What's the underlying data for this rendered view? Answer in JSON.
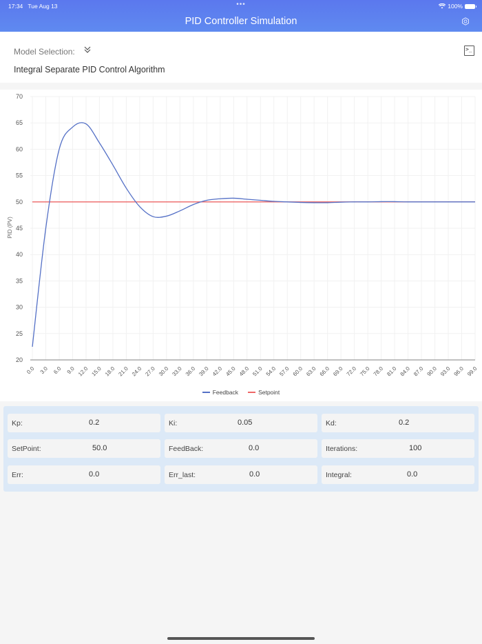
{
  "status_bar": {
    "time": "17:34",
    "date": "Tue Aug 13",
    "dots": "•••",
    "battery": "100%"
  },
  "header": {
    "title": "PID Controller Simulation",
    "settings_icon": "gear-icon"
  },
  "model": {
    "label": "Model Selection:",
    "chevron_icon": "double-chevron-down-icon",
    "selected": "Integral Separate PID Control Algorithm",
    "terminal_icon": "terminal-icon"
  },
  "colors": {
    "header": "#5b78ee",
    "feedback": "#5470c6",
    "setpoint": "#ee6666",
    "panel": "#dce9f7"
  },
  "chart_data": {
    "type": "line",
    "title": "",
    "xlabel": "",
    "ylabel": "PID (PV)",
    "ylim": [
      20,
      70
    ],
    "yticks": [
      20,
      25,
      30,
      35,
      40,
      45,
      50,
      55,
      60,
      65,
      70
    ],
    "x": [
      "0.0",
      "3.0",
      "6.0",
      "9.0",
      "12.0",
      "15.0",
      "18.0",
      "21.0",
      "24.0",
      "27.0",
      "30.0",
      "33.0",
      "36.0",
      "39.0",
      "42.0",
      "45.0",
      "48.0",
      "51.0",
      "54.0",
      "57.0",
      "60.0",
      "63.0",
      "66.0",
      "69.0",
      "72.0",
      "75.0",
      "78.0",
      "81.0",
      "84.0",
      "87.0",
      "90.0",
      "93.0",
      "96.0",
      "99.0"
    ],
    "grid": true,
    "legend_position": "bottom",
    "series": [
      {
        "name": "Feedback",
        "color": "#5470c6",
        "values": [
          22.5,
          45.0,
          60.0,
          64.2,
          64.8,
          61.2,
          57.0,
          52.6,
          49.1,
          47.2,
          47.3,
          48.3,
          49.5,
          50.3,
          50.6,
          50.7,
          50.5,
          50.3,
          50.1,
          50.0,
          49.9,
          49.85,
          49.85,
          49.95,
          50.0,
          50.0,
          50.05,
          50.05,
          50.0,
          50.0,
          50.0,
          50.0,
          50.0,
          50.0
        ]
      },
      {
        "name": "Setpoint",
        "color": "#ee6666",
        "values": [
          50,
          50,
          50,
          50,
          50,
          50,
          50,
          50,
          50,
          50,
          50,
          50,
          50,
          50,
          50,
          50,
          50,
          50,
          50,
          50,
          50,
          50,
          50,
          50,
          50,
          50,
          50,
          50,
          50,
          50,
          50,
          50,
          50,
          50
        ]
      }
    ]
  },
  "legend": {
    "feedback": "Feedback",
    "setpoint": "Setpoint"
  },
  "params": [
    {
      "key": "Kp:",
      "value": "0.2"
    },
    {
      "key": "Ki:",
      "value": "0.05"
    },
    {
      "key": "Kd:",
      "value": "0.2"
    },
    {
      "key": "SetPoint:",
      "value": "50.0"
    },
    {
      "key": "FeedBack:",
      "value": "0.0"
    },
    {
      "key": "Iterations:",
      "value": "100"
    },
    {
      "key": "Err:",
      "value": "0.0"
    },
    {
      "key": "Err_last:",
      "value": "0.0"
    },
    {
      "key": "Integral:",
      "value": "0.0"
    }
  ]
}
